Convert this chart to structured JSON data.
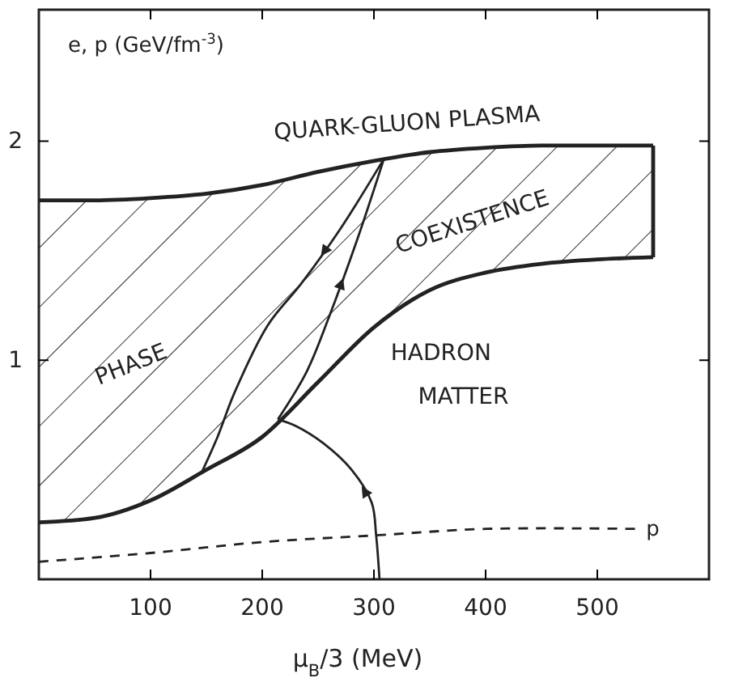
{
  "chart_data": {
    "type": "line",
    "xlabel": "μ$_{B}$/3 (MeV)",
    "ylabel": "e, p (GeV/fm$^{-3}$)",
    "xlim": [
      0,
      600
    ],
    "ylim": [
      0,
      2.6
    ],
    "xticks": [
      100,
      200,
      300,
      400,
      500
    ],
    "yticks": [
      1,
      2
    ],
    "grid": false,
    "series": [
      {
        "color": "#222222",
        "x": [
          0,
          50,
          100,
          150,
          200,
          250,
          300,
          350,
          400,
          450,
          500,
          550
        ],
        "values": [
          1.73,
          1.73,
          1.74,
          1.76,
          1.8,
          1.86,
          1.91,
          1.95,
          1.97,
          1.98,
          1.98,
          1.98
        ],
        "upper": [
          1.73,
          1.73,
          1.74,
          1.76,
          1.8,
          1.86,
          1.91,
          1.95,
          1.97,
          1.98,
          1.98,
          1.98
        ],
        "lower": [
          0.26,
          0.28,
          0.36,
          0.5,
          0.65,
          0.9,
          1.15,
          1.32,
          1.4,
          1.44,
          1.46,
          1.47
        ]
      },
      {
        "color": "#222222",
        "x": [
          0,
          50,
          100,
          150,
          200,
          250,
          300,
          350,
          400,
          450,
          500,
          550
        ],
        "values": [
          0.26,
          0.28,
          0.36,
          0.5,
          0.65,
          0.9,
          1.15,
          1.32,
          1.4,
          1.44,
          1.46,
          1.47
        ]
      },
      {
        "color": "#222222",
        "x": [
          550,
          550
        ],
        "values": [
          1.98,
          1.47
        ]
      },
      {
        "name": "p",
        "color": "#222222",
        "line_style": "dashed",
        "x": [
          0,
          100,
          200,
          300,
          400,
          535
        ],
        "values": [
          0.08,
          0.12,
          0.17,
          0.2,
          0.23,
          0.23
        ]
      },
      {
        "color": "#222222",
        "x": [
          305,
          302,
          298,
          280,
          255,
          230,
          214
        ],
        "values": [
          0,
          0.2,
          0.35,
          0.5,
          0.62,
          0.7,
          0.73
        ]
      },
      {
        "color": "#222222",
        "x": [
          214,
          240,
          260,
          285,
          309
        ],
        "values": [
          0.73,
          0.95,
          1.2,
          1.55,
          1.92
        ]
      },
      {
        "color": "#222222",
        "x": [
          309,
          270,
          235,
          205,
          175,
          160,
          146
        ],
        "values": [
          1.92,
          1.6,
          1.35,
          1.16,
          0.85,
          0.65,
          0.49
        ]
      }
    ],
    "annotations": [
      "QUARK-GLUON PLASMA",
      "COEXISTENCE",
      "PHASE",
      "HADRON",
      "MATTER"
    ]
  }
}
